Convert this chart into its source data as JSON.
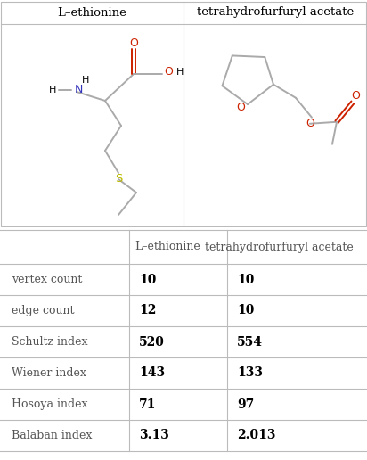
{
  "title_col1": "L–ethionine",
  "title_col2": "tetrahydrofurfuryl acetate",
  "table_rows": [
    [
      "vertex count",
      "10",
      "10"
    ],
    [
      "edge count",
      "12",
      "10"
    ],
    [
      "Schultz index",
      "520",
      "554"
    ],
    [
      "Wiener index",
      "143",
      "133"
    ],
    [
      "Hosoya index",
      "71",
      "97"
    ],
    [
      "Balaban index",
      "3.13",
      "2.013"
    ]
  ],
  "bg_color": "#ffffff",
  "grid_color": "#bbbbbb",
  "text_color": "#000000",
  "bond_color": "#aaaaaa",
  "o_color": "#cc2200",
  "n_color": "#3333bb",
  "s_color": "#bbbb00",
  "header_gray": "#555555"
}
